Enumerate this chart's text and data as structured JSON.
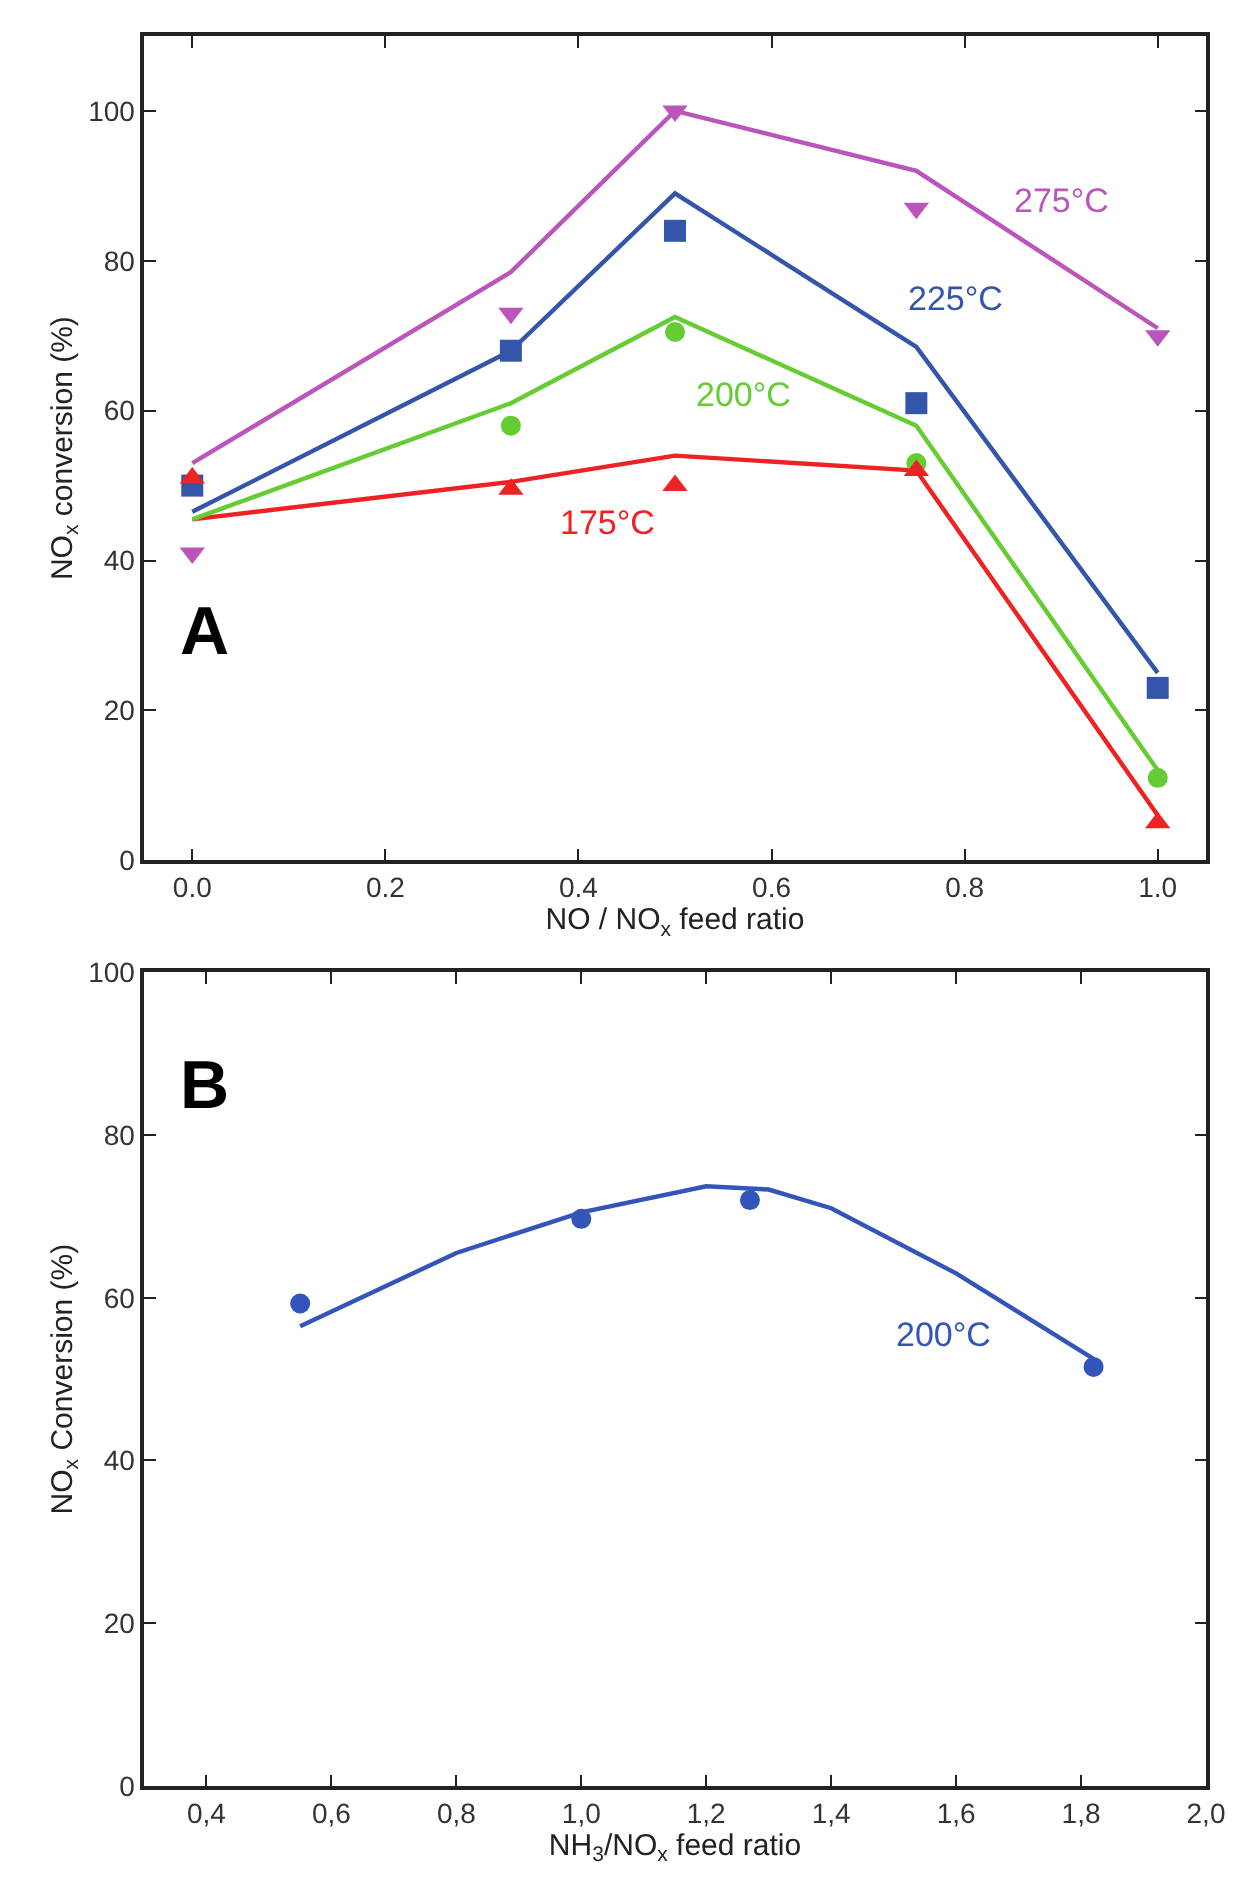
{
  "chart_data": [
    {
      "type": "scatter",
      "xlabel": "NO / NO$_{x}$ feed ratio",
      "ylabel": "NO$_{x}$ conversion (%)",
      "x": [
        0,
        0.33,
        0.5,
        0.75,
        1.0
      ],
      "xlim": [
        -0.05,
        1.05
      ],
      "ylim": [
        0,
        110
      ],
      "xticks": [
        {
          "value": 0,
          "label": "0.0"
        },
        0.2,
        0.4,
        0.6,
        0.8,
        {
          "value": 1,
          "label": "1.0"
        }
      ],
      "yticks": [
        0,
        20,
        40,
        60,
        80,
        100
      ],
      "legend": false,
      "series": [
        {
          "marker": "triangle",
          "color": "#ee2222",
          "values": [
            51,
            49.5,
            50,
            52,
            5
          ]
        },
        {
          "type": "line",
          "name": "175°C",
          "marker": "none",
          "color": "#ee2222",
          "values": [
            45.5,
            50.5,
            54,
            52,
            6
          ]
        },
        {
          "marker": "circle",
          "color": "#66cc33",
          "values": [
            null,
            58,
            70.5,
            53,
            11
          ]
        },
        {
          "type": "line",
          "name": "200°C",
          "marker": "none",
          "color": "#66cc33",
          "values": [
            45.5,
            61,
            72.5,
            58,
            12
          ]
        },
        {
          "marker": "square",
          "color": "#3355aa",
          "values": [
            50,
            68,
            84,
            61,
            23
          ]
        },
        {
          "type": "line",
          "name": "225°C",
          "marker": "none",
          "color": "#3355aa",
          "values": [
            46.5,
            68,
            89,
            68.5,
            25
          ]
        },
        {
          "marker": "triangle-down",
          "color": "#bb55bb",
          "values": [
            41,
            73,
            100,
            87,
            70
          ]
        },
        {
          "type": "line",
          "name": "275°C",
          "marker": "none",
          "color": "#bb55bb",
          "values": [
            53,
            78.5,
            100,
            92,
            71
          ]
        }
      ],
      "annotations": [
        "A"
      ]
    },
    {
      "type": "scatter",
      "xlabel": "NH$_{3}$/NO$_{x}$ feed ratio",
      "ylabel": "NO$_{x}$ Conversion (%)",
      "xlim": [
        0.3,
        2.0
      ],
      "ylim": [
        0,
        100
      ],
      "xticks": [
        {
          "value": 0.4,
          "label": "0,4"
        },
        {
          "value": 0.6,
          "label": "0,6"
        },
        {
          "value": 0.8,
          "label": "0,8"
        },
        {
          "value": 1.0,
          "label": "1,0"
        },
        {
          "value": 1.2,
          "label": "1,2"
        },
        {
          "value": 1.4,
          "label": "1,4"
        },
        {
          "value": 1.6,
          "label": "1,6"
        },
        {
          "value": 1.8,
          "label": "1,8"
        },
        {
          "value": 2.0,
          "label": "2,0"
        }
      ],
      "yticks": [
        0,
        20,
        40,
        60,
        80,
        100
      ],
      "legend": false,
      "series": [
        {
          "marker": "circle",
          "color": "#3355bb",
          "x": [
            0.55,
            1.0,
            1.27,
            1.82
          ],
          "values": [
            59.3,
            69.7,
            72,
            51.5
          ]
        },
        {
          "type": "line",
          "name": "200°C",
          "marker": "none",
          "color": "#3355bb",
          "x": [
            0.55,
            0.8,
            1.0,
            1.2,
            1.3,
            1.4,
            1.6,
            1.82
          ],
          "values": [
            56.5,
            65.5,
            70.5,
            73.7,
            73.3,
            71,
            63,
            52.5
          ]
        }
      ],
      "annotations": [
        "B"
      ]
    }
  ]
}
